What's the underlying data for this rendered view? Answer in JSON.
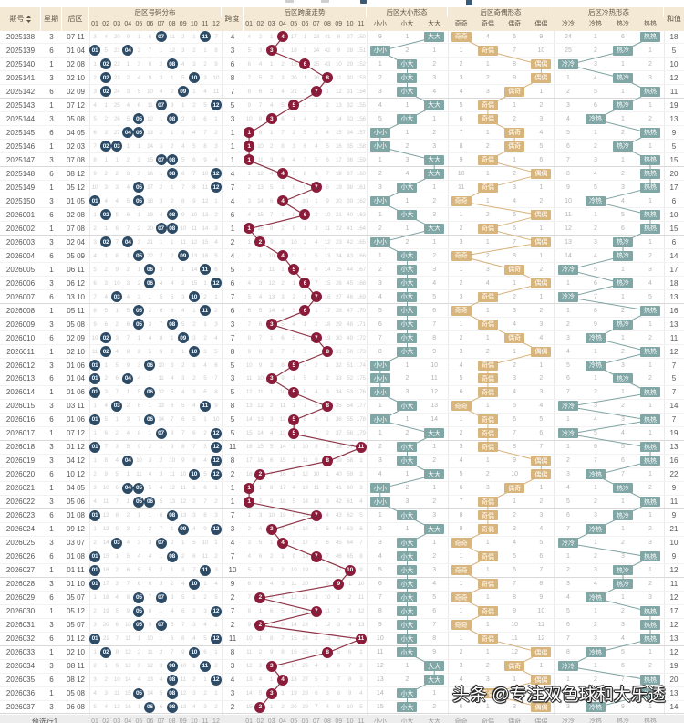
{
  "header": {
    "period": "期号",
    "week": "星期",
    "back": "后区",
    "span": "跨度",
    "sum": "和值",
    "dist_title": "后区号码分布",
    "trend_title": "后区跨度走势",
    "size_title": "后区大小形态",
    "oe_title": "后区奇偶形态",
    "ch_title": "后区冷热形态",
    "dist_labels": [
      "01",
      "02",
      "03",
      "04",
      "05",
      "06",
      "07",
      "08",
      "09",
      "10",
      "11",
      "12"
    ],
    "trend_labels": [
      "01",
      "02",
      "03",
      "04",
      "05",
      "06",
      "07",
      "08",
      "09",
      "10",
      "11"
    ],
    "size_labels": [
      "小小",
      "小大",
      "大大"
    ],
    "oe_labels": [
      "奇奇",
      "奇偶",
      "偶奇",
      "偶偶"
    ],
    "ch_labels": [
      "冷冷",
      "冷热",
      "热冷",
      "热热"
    ]
  },
  "footer": {
    "label": "预选行1"
  },
  "watermark": "头条 @专注双色球和大乐透",
  "colors": {
    "header_bg": "#f3e9d5",
    "header_text": "#5f5647",
    "ball_blue": "#2e4b66",
    "ball_red": "#8a1c3a",
    "trend_line": "#8e3447",
    "state_teal": "#80a7a6",
    "state_tan": "#d8b57c",
    "line_teal": "#7da2a1",
    "line_tan": "#d6b27b",
    "footer_bg": "#ededed"
  },
  "chart_data": {
    "type": "table",
    "title": "后区走势图",
    "columns": [
      "期号",
      "星期",
      "后区",
      "后区号码分布",
      "跨度",
      "后区跨度走势",
      "后区大小形态",
      "后区奇偶形态",
      "后区冷热形态",
      "和值"
    ],
    "initial_omission": {
      "dist": [
        3,
        4,
        20,
        9,
        1,
        6,
        0,
        11,
        2,
        1,
        0,
        7
      ],
      "trend": [
        4,
        2,
        1,
        0,
        17,
        1,
        23,
        41,
        8,
        27,
        150
      ],
      "size": [
        9,
        1,
        0
      ],
      "oe": [
        0,
        4,
        6,
        9
      ],
      "ch": [
        24,
        1,
        6,
        0
      ]
    },
    "rows": [
      {
        "period": "2025138",
        "week": "3",
        "back": [
          "07",
          "11"
        ],
        "span": 4,
        "sum": 18,
        "size": "大大",
        "oe": "奇奇",
        "ch": "热热"
      },
      {
        "period": "2025139",
        "week": "6",
        "back": [
          "01",
          "04"
        ],
        "span": 3,
        "sum": 5,
        "size": "小小",
        "oe": "奇偶",
        "ch": "热冷"
      },
      {
        "period": "2025140",
        "week": "1",
        "back": [
          "02",
          "08"
        ],
        "span": 6,
        "sum": 10,
        "size": "小大",
        "oe": "偶偶",
        "ch": "冷冷"
      },
      {
        "period": "2025141",
        "week": "3",
        "back": [
          "02",
          "10"
        ],
        "span": 8,
        "sum": 12,
        "size": "小大",
        "oe": "偶偶",
        "ch": "热冷"
      },
      {
        "period": "2025142",
        "week": "6",
        "back": [
          "02",
          "09"
        ],
        "span": 7,
        "sum": 11,
        "size": "小大",
        "oe": "偶奇",
        "ch": "热热"
      },
      {
        "period": "2025143",
        "week": "1",
        "back": [
          "07",
          "12"
        ],
        "span": 5,
        "sum": 19,
        "size": "大大",
        "oe": "奇偶",
        "ch": "热冷"
      },
      {
        "period": "2025144",
        "week": "3",
        "back": [
          "05",
          "08"
        ],
        "span": 3,
        "sum": 13,
        "size": "小大",
        "oe": "奇偶",
        "ch": "冷热"
      },
      {
        "period": "2025145",
        "week": "6",
        "back": [
          "04",
          "05"
        ],
        "span": 1,
        "sum": 9,
        "size": "小小",
        "oe": "偶奇",
        "ch": "热热"
      },
      {
        "period": "2025146",
        "week": "1",
        "back": [
          "02",
          "03"
        ],
        "span": 1,
        "sum": 5,
        "size": "小小",
        "oe": "偶奇",
        "ch": "热冷"
      },
      {
        "period": "2025147",
        "week": "3",
        "back": [
          "07",
          "08"
        ],
        "span": 1,
        "sum": 15,
        "size": "大大",
        "oe": "奇偶",
        "ch": "热热"
      },
      {
        "period": "2025148",
        "week": "6",
        "back": [
          "08",
          "12"
        ],
        "span": 4,
        "sum": 20,
        "size": "大大",
        "oe": "偶偶",
        "ch": "热热"
      },
      {
        "period": "2025149",
        "week": "1",
        "back": [
          "05",
          "12"
        ],
        "span": 7,
        "sum": 17,
        "size": "小大",
        "oe": "奇偶",
        "ch": "热热"
      },
      {
        "period": "2025150",
        "week": "3",
        "back": [
          "01",
          "05"
        ],
        "span": 4,
        "sum": 6,
        "size": "小小",
        "oe": "奇奇",
        "ch": "冷热"
      },
      {
        "period": "2026001",
        "week": "6",
        "back": [
          "02",
          "08"
        ],
        "span": 6,
        "sum": 10,
        "size": "小大",
        "oe": "偶偶",
        "ch": "热热"
      },
      {
        "period": "2026002",
        "week": "1",
        "back": [
          "07",
          "08"
        ],
        "span": 1,
        "sum": 15,
        "size": "大大",
        "oe": "奇偶",
        "ch": "热热"
      },
      {
        "period": "2026003",
        "week": "3",
        "back": [
          "02",
          "04"
        ],
        "span": 2,
        "sum": 6,
        "size": "小小",
        "oe": "偶偶",
        "ch": "热冷"
      },
      {
        "period": "2026004",
        "week": "6",
        "back": [
          "05",
          "09"
        ],
        "span": 4,
        "sum": 14,
        "size": "小大",
        "oe": "奇奇",
        "ch": "热冷"
      },
      {
        "period": "2026005",
        "week": "1",
        "back": [
          "06",
          "11"
        ],
        "span": 5,
        "sum": 17,
        "size": "小大",
        "oe": "偶奇",
        "ch": "冷冷"
      },
      {
        "period": "2026006",
        "week": "3",
        "back": [
          "06",
          "12"
        ],
        "span": 6,
        "sum": 18,
        "size": "小大",
        "oe": "偶偶",
        "ch": "热冷"
      },
      {
        "period": "2026007",
        "week": "6",
        "back": [
          "03",
          "10"
        ],
        "span": 7,
        "sum": 13,
        "size": "小大",
        "oe": "奇偶",
        "ch": "冷冷"
      },
      {
        "period": "2026008",
        "week": "1",
        "back": [
          "05",
          "11"
        ],
        "span": 6,
        "sum": 16,
        "size": "小大",
        "oe": "奇奇",
        "ch": "热热"
      },
      {
        "period": "2026009",
        "week": "3",
        "back": [
          "05",
          "08"
        ],
        "span": 3,
        "sum": 13,
        "size": "小大",
        "oe": "奇偶",
        "ch": "热冷"
      },
      {
        "period": "2026010",
        "week": "6",
        "back": [
          "02",
          "09"
        ],
        "span": 7,
        "sum": 11,
        "size": "小大",
        "oe": "偶奇",
        "ch": "冷热"
      },
      {
        "period": "2026011",
        "week": "1",
        "back": [
          "02",
          "10"
        ],
        "span": 8,
        "sum": 12,
        "size": "小大",
        "oe": "偶偶",
        "ch": "热热"
      },
      {
        "period": "2026012",
        "week": "3",
        "back": [
          "01",
          "06"
        ],
        "span": 5,
        "sum": 7,
        "size": "小小",
        "oe": "奇偶",
        "ch": "冷热"
      },
      {
        "period": "2026013",
        "week": "6",
        "back": [
          "01",
          "04"
        ],
        "span": 3,
        "sum": 5,
        "size": "小小",
        "oe": "奇偶",
        "ch": "热冷"
      },
      {
        "period": "2026014",
        "week": "1",
        "back": [
          "01",
          "06"
        ],
        "span": 5,
        "sum": 7,
        "size": "小小",
        "oe": "奇偶",
        "ch": "热热"
      },
      {
        "period": "2026015",
        "week": "3",
        "back": [
          "03",
          "11"
        ],
        "span": 8,
        "sum": 14,
        "size": "小大",
        "oe": "奇奇",
        "ch": "冷冷"
      },
      {
        "period": "2026016",
        "week": "6",
        "back": [
          "01",
          "06"
        ],
        "span": 5,
        "sum": 7,
        "size": "小小",
        "oe": "奇偶",
        "ch": "热热"
      },
      {
        "period": "2026017",
        "week": "1",
        "back": [
          "07",
          "12"
        ],
        "span": 5,
        "sum": 19,
        "size": "大大",
        "oe": "奇偶",
        "ch": "冷冷"
      },
      {
        "period": "2026018",
        "week": "3",
        "back": [
          "01",
          "12"
        ],
        "span": 11,
        "sum": 13,
        "size": "小大",
        "oe": "奇偶",
        "ch": "热热"
      },
      {
        "period": "2026019",
        "week": "3",
        "back": [
          "04",
          "12"
        ],
        "span": 8,
        "sum": 16,
        "size": "小大",
        "oe": "偶偶",
        "ch": "热热"
      },
      {
        "period": "2026020",
        "week": "6",
        "back": [
          "10",
          "12"
        ],
        "span": 2,
        "sum": 22,
        "size": "大大",
        "oe": "偶偶",
        "ch": "冷热"
      },
      {
        "period": "2026021",
        "week": "1",
        "back": [
          "04",
          "05"
        ],
        "span": 1,
        "sum": 9,
        "size": "小小",
        "oe": "偶奇",
        "ch": "热冷"
      },
      {
        "period": "2026022",
        "week": "3",
        "back": [
          "05",
          "06"
        ],
        "span": 1,
        "sum": 11,
        "size": "小小",
        "oe": "奇偶",
        "ch": "热热"
      },
      {
        "period": "2026023",
        "week": "6",
        "back": [
          "01",
          "08"
        ],
        "span": 7,
        "sum": 9,
        "size": "小大",
        "oe": "奇偶",
        "ch": "热冷"
      },
      {
        "period": "2026024",
        "week": "1",
        "back": [
          "09",
          "12"
        ],
        "span": 3,
        "sum": 21,
        "size": "大大",
        "oe": "奇偶",
        "ch": "冷热"
      },
      {
        "period": "2026025",
        "week": "3",
        "back": [
          "03",
          "07"
        ],
        "span": 4,
        "sum": 10,
        "size": "小大",
        "oe": "奇奇",
        "ch": "冷冷"
      },
      {
        "period": "2026026",
        "week": "6",
        "back": [
          "01",
          "08"
        ],
        "span": 7,
        "sum": 9,
        "size": "小大",
        "oe": "奇偶",
        "ch": "热热"
      },
      {
        "period": "2026027",
        "week": "1",
        "back": [
          "01",
          "11"
        ],
        "span": 10,
        "sum": 12,
        "size": "小大",
        "oe": "奇奇",
        "ch": "热冷"
      },
      {
        "period": "2026028",
        "week": "3",
        "back": [
          "01",
          "10"
        ],
        "span": 9,
        "sum": 11,
        "size": "小大",
        "oe": "奇偶",
        "ch": "热冷"
      },
      {
        "period": "2026029",
        "week": "6",
        "back": [
          "05",
          "07"
        ],
        "span": 2,
        "sum": 12,
        "size": "小大",
        "oe": "奇奇",
        "ch": "冷热"
      },
      {
        "period": "2026030",
        "week": "1",
        "back": [
          "05",
          "12"
        ],
        "span": 7,
        "sum": 17,
        "size": "小大",
        "oe": "奇偶",
        "ch": "热热"
      },
      {
        "period": "2026031",
        "week": "3",
        "back": [
          "05",
          "07"
        ],
        "span": 2,
        "sum": 12,
        "size": "小大",
        "oe": "奇奇",
        "ch": "热热"
      },
      {
        "period": "2026032",
        "week": "6",
        "back": [
          "01",
          "12"
        ],
        "span": 11,
        "sum": 13,
        "size": "小大",
        "oe": "奇偶",
        "ch": "热热"
      },
      {
        "period": "2026033",
        "week": "1",
        "back": [
          "02",
          "10"
        ],
        "span": 8,
        "sum": 12,
        "size": "小大",
        "oe": "偶偶",
        "ch": "冷热"
      },
      {
        "period": "2026034",
        "week": "3",
        "back": [
          "08",
          "11"
        ],
        "span": 3,
        "sum": 19,
        "size": "大大",
        "oe": "偶奇",
        "ch": "冷冷"
      },
      {
        "period": "2026035",
        "week": "6",
        "back": [
          "08",
          "12"
        ],
        "span": 4,
        "sum": 20,
        "size": "大大",
        "oe": "偶偶",
        "ch": "热热"
      },
      {
        "period": "2026036",
        "week": "1",
        "back": [
          "05",
          "08"
        ],
        "span": 3,
        "sum": 13,
        "size": "小大",
        "oe": "奇偶",
        "ch": "热热"
      },
      {
        "period": "2026037",
        "week": "3",
        "back": [
          "06",
          "08"
        ],
        "span": 2,
        "sum": 14,
        "size": "小大",
        "oe": "偶偶",
        "ch": "冷热"
      }
    ]
  }
}
